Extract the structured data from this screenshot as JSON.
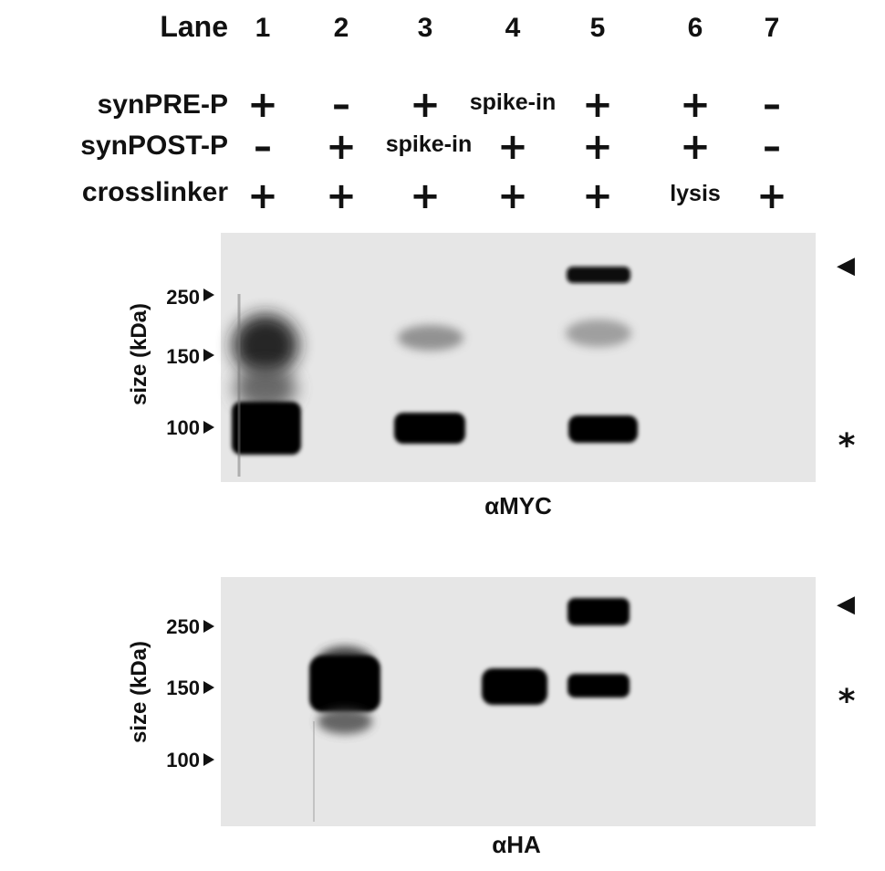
{
  "header": {
    "label": "Lane"
  },
  "lanes": [
    "1",
    "2",
    "3",
    "4",
    "5",
    "6",
    "7"
  ],
  "conditions": [
    {
      "label": "synPRE-P",
      "values": [
        "+",
        "–",
        "+",
        "spike-in",
        "+",
        "+",
        "–"
      ]
    },
    {
      "label": "synPOST-P",
      "values": [
        "–",
        "+",
        "spike-in",
        "+",
        "+",
        "+",
        "–"
      ]
    },
    {
      "label": "crosslinker",
      "values": [
        "+",
        "+",
        "+",
        "+",
        "+",
        "lysis",
        "+"
      ]
    }
  ],
  "blots": [
    {
      "name": "myc",
      "antibody": "αMYC",
      "axis_label": "size (kDa)",
      "markers": [
        "250",
        "150",
        "100"
      ],
      "arrow_mark": "◀",
      "star_mark": "*"
    },
    {
      "name": "ha",
      "antibody": "αHA",
      "axis_label": "size (kDa)",
      "markers": [
        "250",
        "150",
        "100"
      ],
      "arrow_mark": "◀",
      "star_mark": "*"
    }
  ],
  "colors": {
    "membrane": "#e6e6e6",
    "band": "#050505",
    "text": "#111111"
  }
}
